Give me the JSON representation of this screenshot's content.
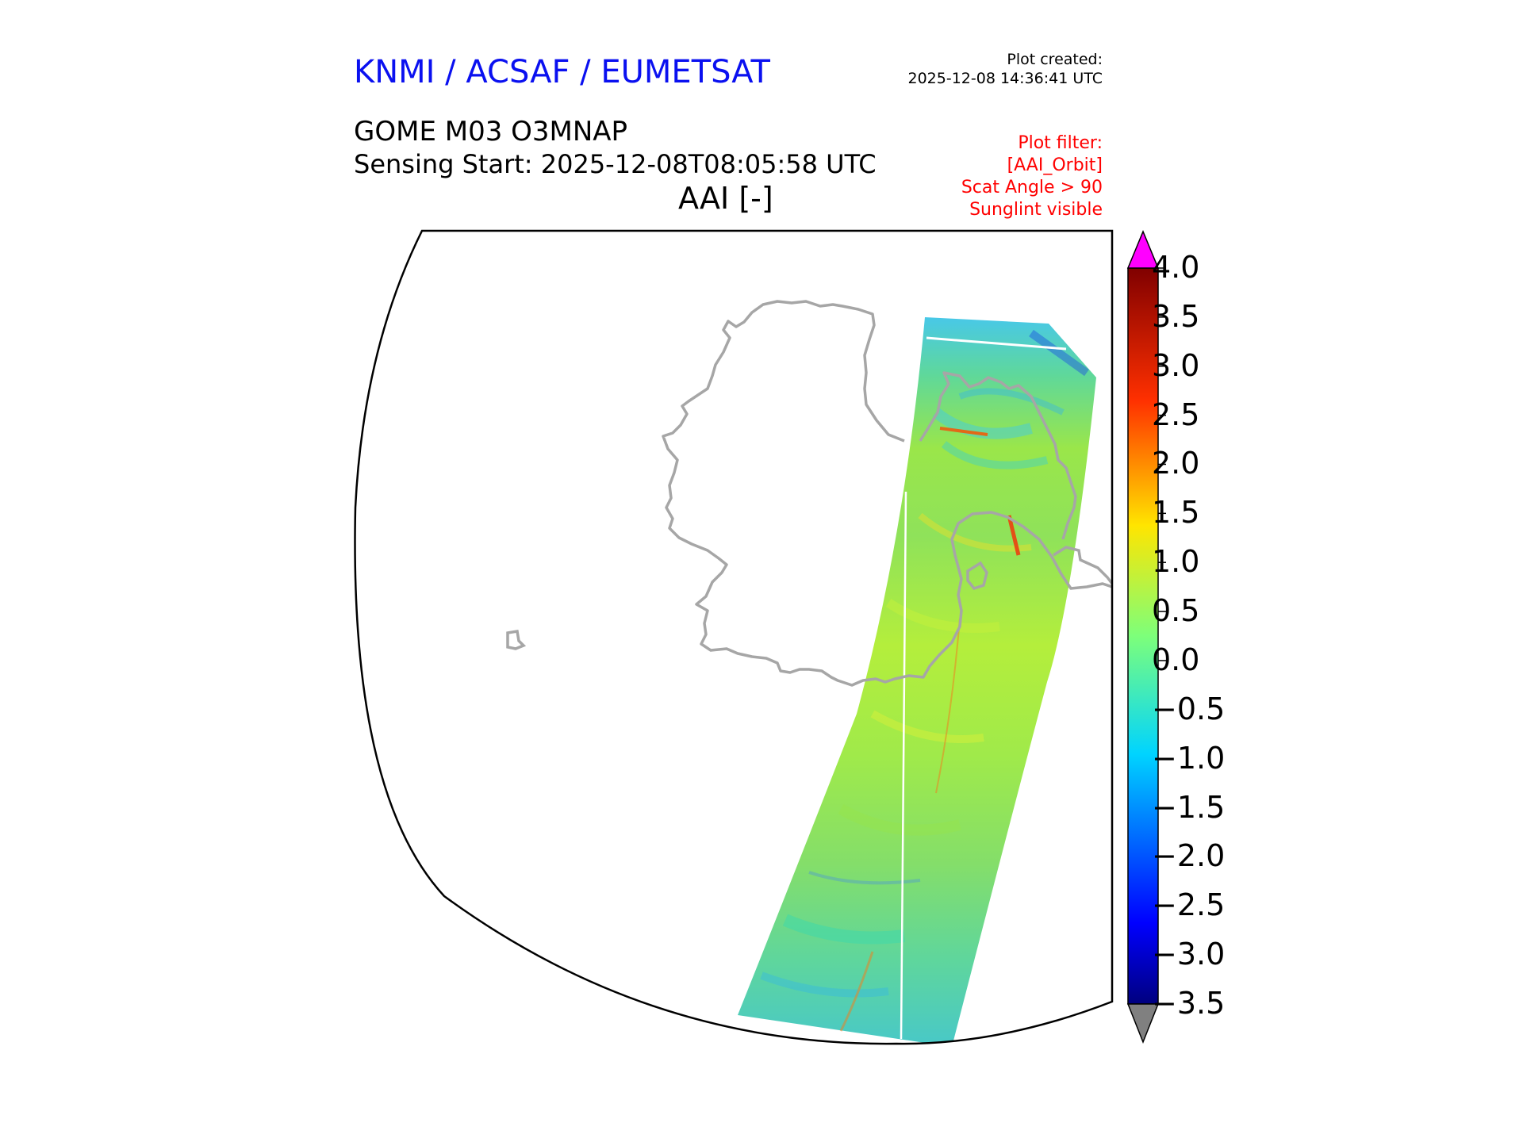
{
  "header": {
    "brand": "KNMI / ACSAF / EUMETSAT",
    "plot_created_label": "Plot created:",
    "plot_created_time": "2025-12-08 14:36:41 UTC",
    "product": "GOME M03 O3MNAP",
    "sensing_start": "Sensing Start: 2025-12-08T08:05:58 UTC",
    "parameter": "AAI [-]"
  },
  "filter": {
    "lines": [
      "Plot filter:",
      "[AAI_Orbit]",
      "Scat Angle > 90",
      "Sunglint visible"
    ]
  },
  "map": {
    "coastline_color": "#a6a6a6",
    "frame_color": "#000000",
    "swath_dominant_colors": [
      "#7fe060",
      "#a8ec3c",
      "#36d8b0",
      "#2fb4f0",
      "#ffe020",
      "#ff2000"
    ]
  },
  "colorbar": {
    "min": -3.5,
    "max": 4.0,
    "tick_labels": [
      "4.0",
      "3.5",
      "3.0",
      "2.5",
      "2.0",
      "1.5",
      "1.0",
      "0.5",
      "0.0",
      "−0.5",
      "−1.0",
      "−1.5",
      "−2.0",
      "−2.5",
      "−3.0",
      "−3.5"
    ],
    "over_color": "#ff00ff",
    "under_color": "#808080",
    "colormap": "jet"
  }
}
